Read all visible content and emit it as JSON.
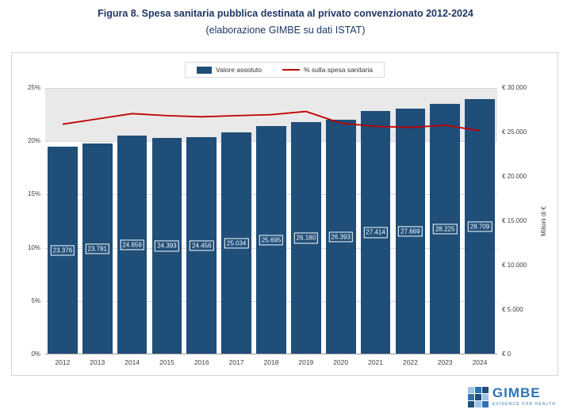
{
  "page": {
    "title": "Figura 8. Spesa sanitaria pubblica destinata al privato convenzionato 2012-2024",
    "subtitle": "(elaborazione GIMBE su dati ISTAT)"
  },
  "legend": {
    "bar_label": "Valore assoluto",
    "line_label": "% sulla spesa sanitaria"
  },
  "chart_data": {
    "type": "bar",
    "title": "Figura 8. Spesa sanitaria pubblica destinata al privato convenzionato 2012-2024",
    "subtitle": "(elaborazione GIMBE su dati ISTAT)",
    "categories": [
      "2012",
      "2013",
      "2014",
      "2015",
      "2016",
      "2017",
      "2018",
      "2019",
      "2020",
      "2021",
      "2022",
      "2023",
      "2024"
    ],
    "series": [
      {
        "name": "Valore assoluto",
        "type": "bar",
        "axis": "right",
        "values": [
          23376,
          23781,
          24659,
          24393,
          24456,
          25034,
          25695,
          26180,
          26393,
          27414,
          27669,
          28225,
          28709
        ],
        "labels": [
          "23.376",
          "23.781",
          "24.659",
          "24.393",
          "24.456",
          "25.034",
          "25.695",
          "26.180",
          "26.393",
          "27.414",
          "27.669",
          "28.225",
          "28.709"
        ]
      },
      {
        "name": "% sulla spesa sanitaria",
        "type": "line",
        "axis": "left",
        "values": [
          21.6,
          22.1,
          22.6,
          22.4,
          22.3,
          22.4,
          22.5,
          22.8,
          21.7,
          21.4,
          21.3,
          21.5,
          21.0
        ]
      }
    ],
    "left_axis": {
      "min": 0,
      "max": 25,
      "ticks": [
        "0%",
        "5%",
        "10%",
        "15%",
        "20%",
        "25%"
      ]
    },
    "right_axis": {
      "min": 0,
      "max": 30000,
      "ticks": [
        "€ 0",
        "€ 5.000",
        "€ 10.000",
        "€ 15.000",
        "€ 20.000",
        "€ 25.000",
        "€ 30.000"
      ],
      "label": "Milioni di €"
    },
    "shaded_band": {
      "from_pct": 20,
      "to_pct": 25
    },
    "legend_position": "top",
    "grid": true
  },
  "footer": {
    "logo_text": "GIMBE",
    "tagline": "EVIDENCE FOR HEALTH"
  },
  "colors": {
    "title_blue": "#1F3864",
    "bar_blue": "#1F4E79",
    "line_red": "#C00000",
    "band_gray": "#E9E9E9",
    "gridline_gray": "#D9D9D9",
    "axis_text": "#404040",
    "logo_blue": "#2E74B5"
  }
}
